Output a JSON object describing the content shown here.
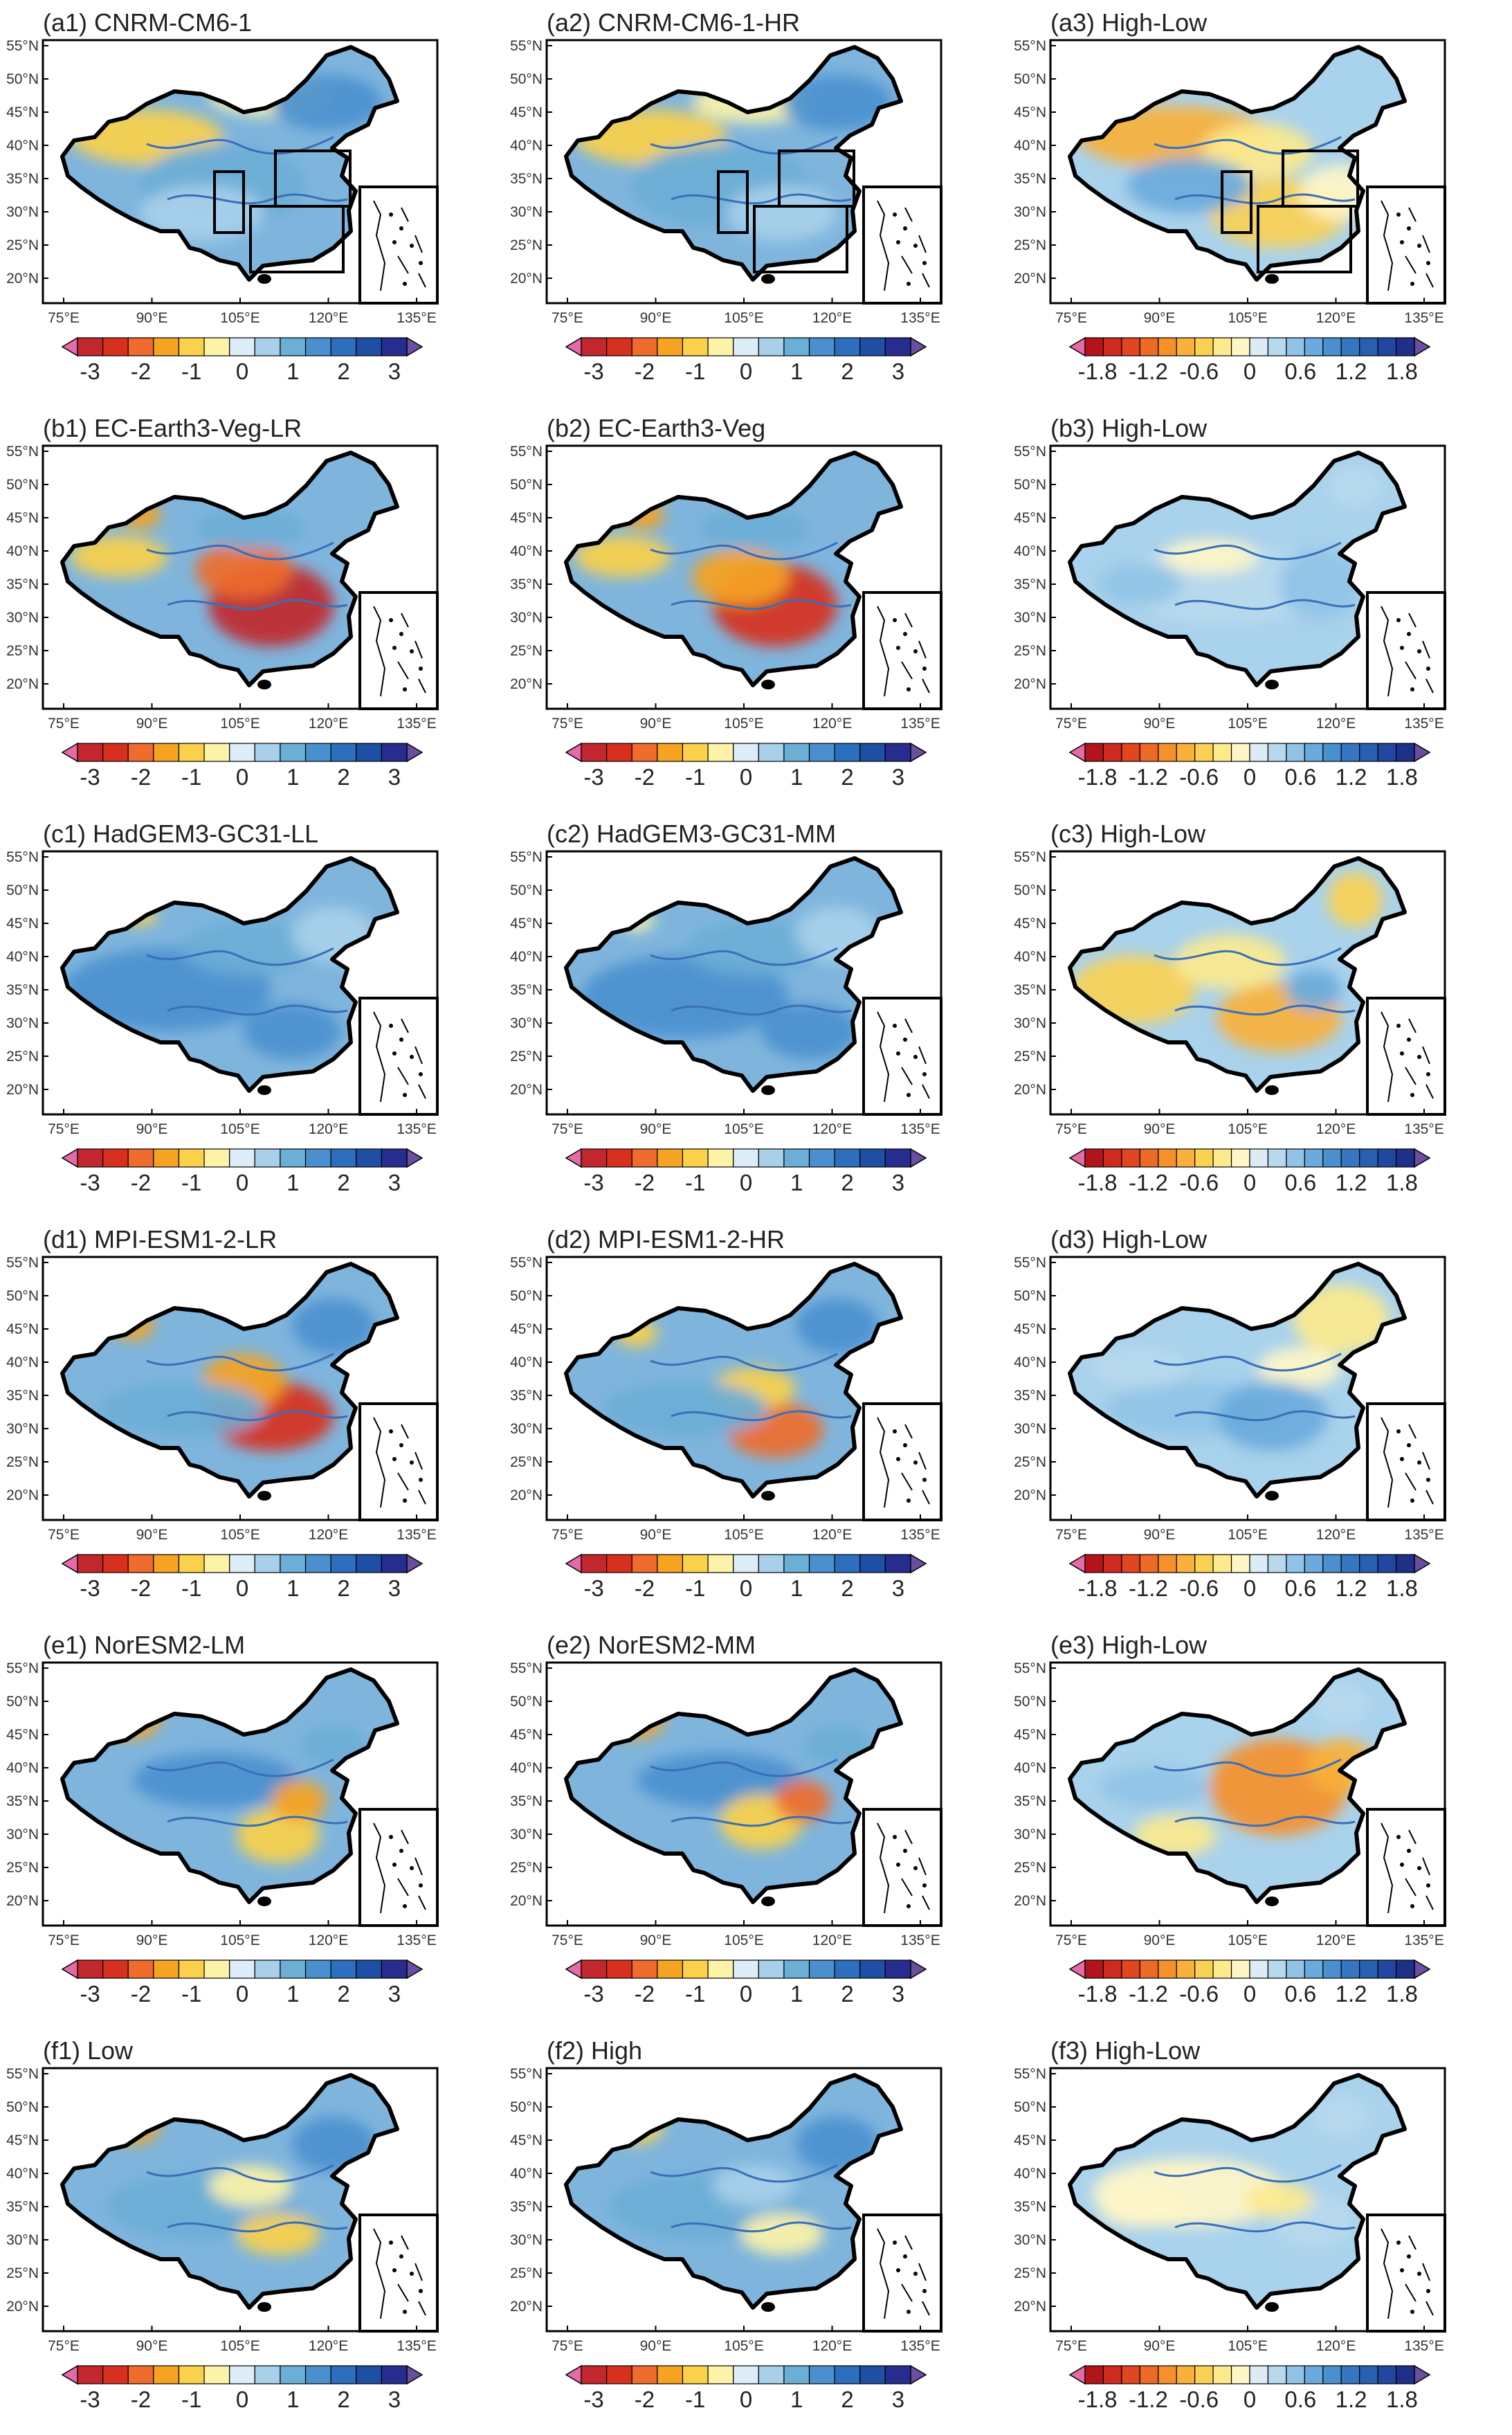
{
  "figure": {
    "panels": [
      {
        "label": "(a1) CNRM-CM6-1",
        "kind": "model",
        "boxes": true
      },
      {
        "label": "(a2) CNRM-CM6-1-HR",
        "kind": "model",
        "boxes": true
      },
      {
        "label": "(a3) High-Low",
        "kind": "diff",
        "boxes": true
      },
      {
        "label": "(b1) EC-Earth3-Veg-LR",
        "kind": "model",
        "boxes": false
      },
      {
        "label": "(b2) EC-Earth3-Veg",
        "kind": "model",
        "boxes": false
      },
      {
        "label": "(b3) High-Low",
        "kind": "diff",
        "boxes": false
      },
      {
        "label": "(c1) HadGEM3-GC31-LL",
        "kind": "model",
        "boxes": false
      },
      {
        "label": "(c2) HadGEM3-GC31-MM",
        "kind": "model",
        "boxes": false
      },
      {
        "label": "(c3) High-Low",
        "kind": "diff",
        "boxes": false
      },
      {
        "label": "(d1) MPI-ESM1-2-LR",
        "kind": "model",
        "boxes": false
      },
      {
        "label": "(d2) MPI-ESM1-2-HR",
        "kind": "model",
        "boxes": false
      },
      {
        "label": "(d3) High-Low",
        "kind": "diff",
        "boxes": false
      },
      {
        "label": "(e1) NorESM2-LM",
        "kind": "model",
        "boxes": false
      },
      {
        "label": "(e2) NorESM2-MM",
        "kind": "model",
        "boxes": false
      },
      {
        "label": "(e3) High-Low",
        "kind": "diff",
        "boxes": false
      },
      {
        "label": "(f1) Low",
        "kind": "model",
        "boxes": false
      },
      {
        "label": "(f2) High",
        "kind": "model",
        "boxes": false
      },
      {
        "label": "(f3) High-Low",
        "kind": "diff",
        "boxes": false
      }
    ],
    "lat_ticks": [
      "55°N",
      "50°N",
      "45°N",
      "40°N",
      "35°N",
      "30°N",
      "25°N",
      "20°N"
    ],
    "lon_ticks": [
      "75°E",
      "90°E",
      "105°E",
      "120°E",
      "135°E"
    ],
    "colorbar_model": {
      "labels": [
        "-3",
        "-2",
        "-1",
        "0",
        "1",
        "2",
        "3"
      ],
      "colors": [
        "#c1272d",
        "#d7301f",
        "#ef6c2d",
        "#f6a321",
        "#fbd14b",
        "#fdf3a8",
        "#dcedf7",
        "#a8d0ea",
        "#6baed6",
        "#4a90cf",
        "#2c6fbe",
        "#1f4fa5",
        "#262d8f"
      ],
      "under_color": "#e56aa8",
      "over_color": "#6a4ea0"
    },
    "colorbar_diff": {
      "labels": [
        "-1.8",
        "-1.2",
        "-0.6",
        "0",
        "0.6",
        "1.2",
        "1.8"
      ],
      "colors": [
        "#b3141c",
        "#cf2a1f",
        "#e0461f",
        "#ec6a25",
        "#f5902b",
        "#f9b13b",
        "#fbd153",
        "#fdea8d",
        "#fff6c7",
        "#dcecf6",
        "#b7d9ee",
        "#90c3e6",
        "#6aaadc",
        "#4a90cf",
        "#3676c0",
        "#285fb0",
        "#2247a0",
        "#1f3088"
      ],
      "under_color": "#e56aa8",
      "over_color": "#6a4ea0"
    }
  }
}
